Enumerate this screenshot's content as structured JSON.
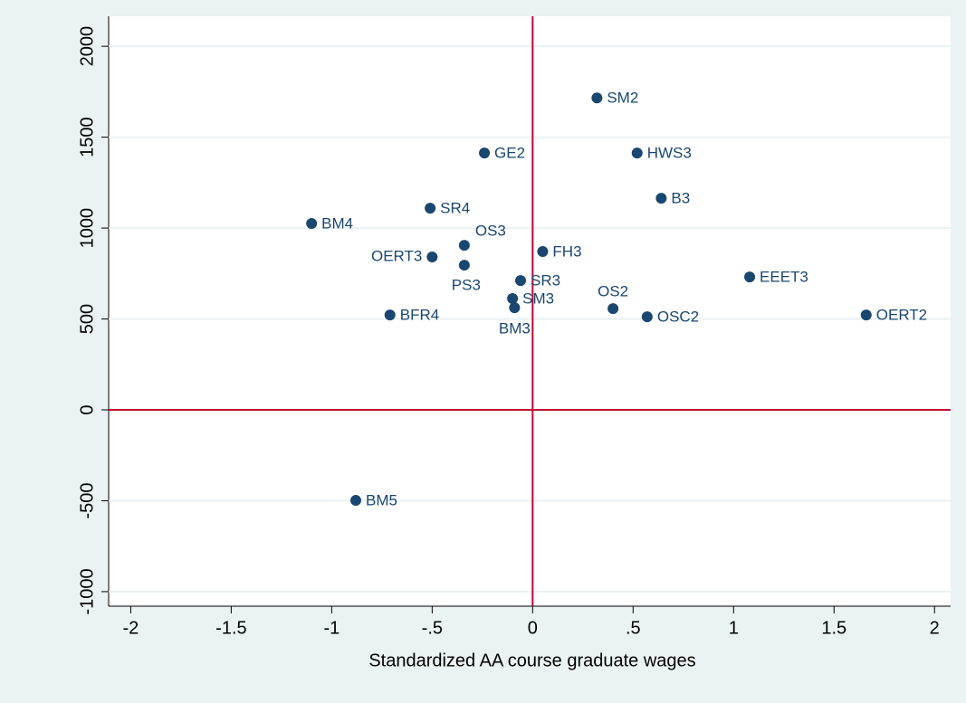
{
  "chart_data": {
    "type": "scatter",
    "x_label": "Standardized AA course graduate wages",
    "labels": [
      "SM2",
      "GE2",
      "HWS3",
      "B3",
      "SR4",
      "BM4",
      "OS3",
      "FH3",
      "OERT3",
      "PS3",
      "SR3",
      "EEET3",
      "SM3",
      "BM3",
      "OS2",
      "BFR4",
      "OSC2",
      "OERT2",
      "BM5"
    ],
    "x": [
      0.32,
      -0.24,
      0.52,
      0.64,
      -0.51,
      -1.1,
      -0.34,
      0.05,
      -0.5,
      -0.34,
      -0.06,
      1.08,
      -0.1,
      -0.09,
      0.4,
      -0.71,
      0.57,
      1.66,
      -0.88
    ],
    "y": [
      1716,
      1413,
      1413,
      1164,
      1109,
      1025,
      905,
      871,
      841,
      796,
      711,
      731,
      612,
      562,
      557,
      522,
      512,
      522,
      -498
    ],
    "color": "#1a476f",
    "ref_color": "#c10534",
    "xlim": [
      -2.11,
      2.08
    ],
    "xticks": [
      -2,
      {
        "value": -1.5,
        "label": "-1.5"
      },
      -1,
      {
        "value": -0.5,
        "label": "-.5"
      },
      0,
      {
        "value": 0.5,
        "label": ".5"
      },
      1,
      {
        "value": 1.5,
        "label": "1.5"
      },
      2
    ],
    "ylim": [
      -1080,
      2165
    ],
    "yticks": [
      -1000,
      -500,
      0,
      500,
      1000,
      1500,
      2000
    ],
    "grid": true
  }
}
